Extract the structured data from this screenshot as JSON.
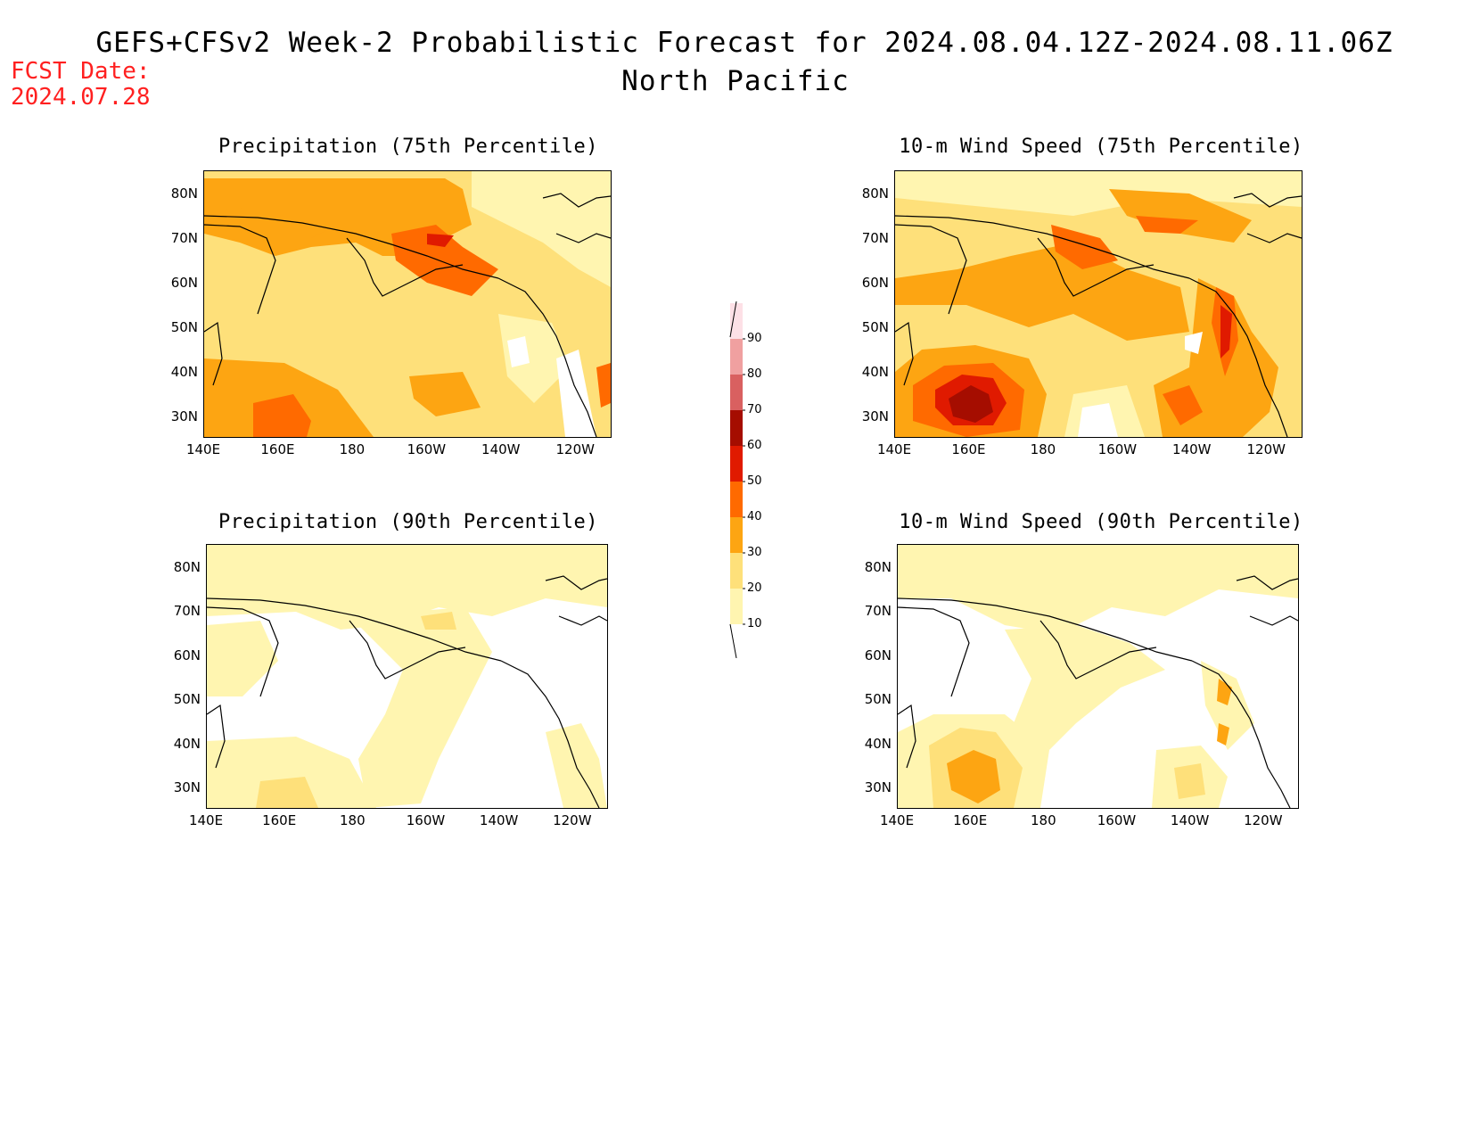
{
  "title": "GEFS+CFSv2 Week-2 Probabilistic Forecast for 2024.08.04.12Z-2024.08.11.06Z",
  "subtitle": "North Pacific",
  "fcst_label": "FCST Date:",
  "fcst_date": "2024.07.28",
  "panels": [
    {
      "title": "Precipitation (75th Percentile)"
    },
    {
      "title": "10-m Wind Speed (75th Percentile)"
    },
    {
      "title": "Precipitation (90th Percentile)"
    },
    {
      "title": "10-m Wind Speed (90th Percentile)"
    }
  ],
  "lat_ticks": [
    "80N",
    "70N",
    "60N",
    "50N",
    "40N",
    "30N"
  ],
  "lon_ticks": [
    "140E",
    "160E",
    "180",
    "160W",
    "140W",
    "120W"
  ],
  "colorbar": {
    "levels": [
      "10",
      "20",
      "30",
      "40",
      "50",
      "60",
      "70",
      "80",
      "90"
    ],
    "colors": [
      "#fff5b0",
      "#fee07a",
      "#fda512",
      "#ff6a00",
      "#e01a00",
      "#a50d00",
      "#d96060",
      "#f0a0a0",
      "#fde0e6"
    ]
  }
}
